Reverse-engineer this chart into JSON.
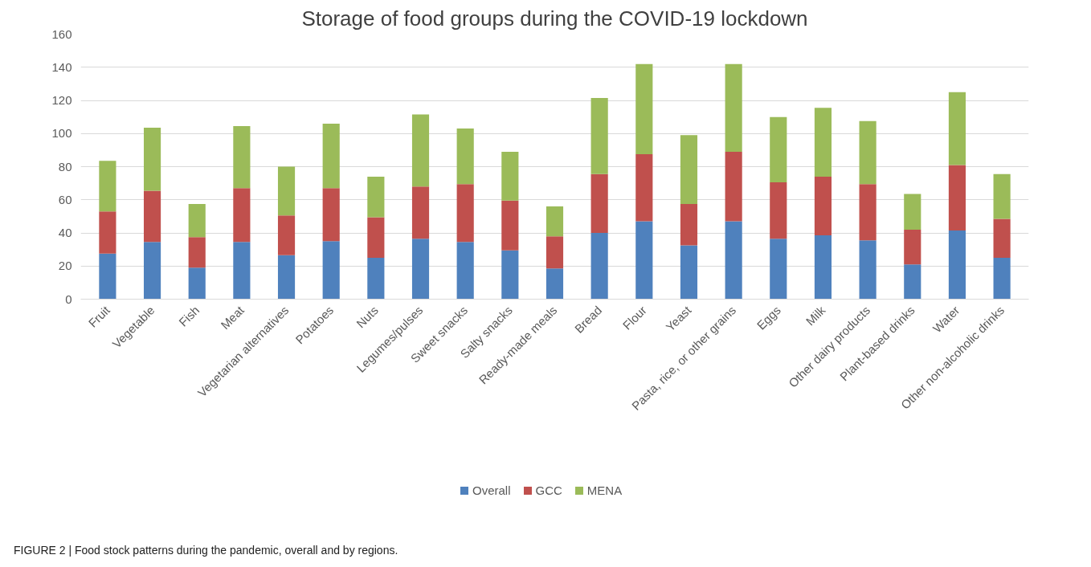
{
  "chart_data": {
    "type": "bar",
    "stacked": true,
    "title": "Storage of food groups during the COVID-19 lockdown",
    "categories": [
      "Fruit",
      "Vegetable",
      "Fish",
      "Meat",
      "Vegetarian alternatives",
      "Potatoes",
      "Nuts",
      "Legumes/pulses",
      "Sweet snacks",
      "Salty snacks",
      "Ready-made meals",
      "Bread",
      "Flour",
      "Yeast",
      "Pasta, rice, or other grains",
      "Eggs",
      "Milk",
      "Other dairy products",
      "Plant-based drinks",
      "Water",
      "Other non-alcoholic drinks"
    ],
    "series": [
      {
        "name": "Overall",
        "color": "#4f81bd",
        "values": [
          27.5,
          34.5,
          19,
          34.5,
          26.5,
          35,
          25,
          36.5,
          34.5,
          29.5,
          18.5,
          40,
          47,
          32.5,
          47,
          36.5,
          38.5,
          35.5,
          21,
          41.5,
          25
        ]
      },
      {
        "name": "GCC",
        "color": "#c0504d",
        "values": [
          25.5,
          31,
          18.5,
          32.5,
          24,
          32,
          24.5,
          31.5,
          35,
          30,
          19.5,
          35.5,
          40.5,
          25,
          42,
          34,
          35.5,
          34,
          21,
          39.5,
          23.5
        ]
      },
      {
        "name": "MENA",
        "color": "#9bbb59",
        "values": [
          30.5,
          38,
          20,
          37.5,
          29.5,
          39,
          24.5,
          43.5,
          33.5,
          29.5,
          18,
          46,
          54.5,
          41.5,
          53,
          39.5,
          41.5,
          38,
          21.5,
          44,
          27
        ]
      }
    ],
    "ylim": [
      0,
      160
    ],
    "yticks": [
      0,
      20,
      40,
      60,
      80,
      100,
      120,
      140,
      160
    ],
    "grid": "y",
    "legend": "bottom",
    "annotations": [
      "FIGURE 2 | Food stock patterns during the pandemic, overall and by regions."
    ]
  }
}
